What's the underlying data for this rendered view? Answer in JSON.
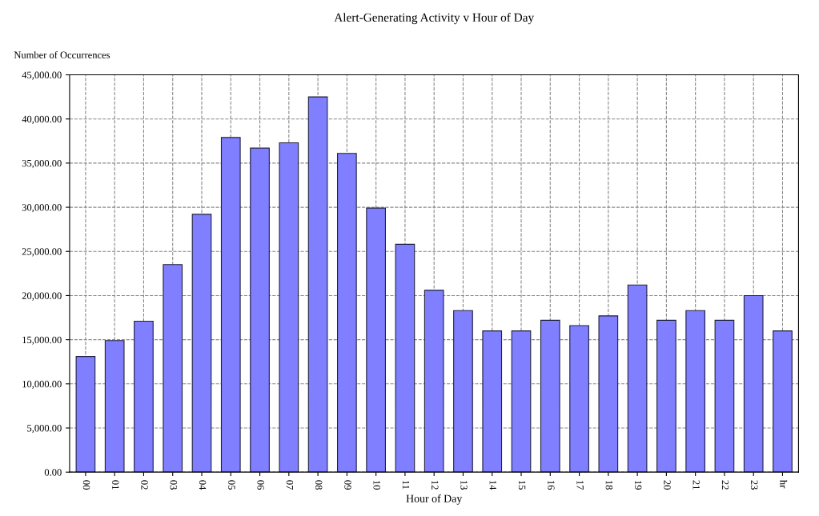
{
  "chart_data": {
    "type": "bar",
    "title": "Alert-Generating Activity v Hour of Day",
    "xlabel": "Hour of Day",
    "ylabel": "Number of Occurrences",
    "categories": [
      "00",
      "01",
      "02",
      "03",
      "04",
      "05",
      "06",
      "07",
      "08",
      "09",
      "10",
      "11",
      "12",
      "13",
      "14",
      "15",
      "16",
      "17",
      "18",
      "19",
      "20",
      "21",
      "22",
      "23",
      "hr"
    ],
    "values": [
      13100,
      14900,
      17100,
      23500,
      29200,
      37900,
      36700,
      37300,
      42500,
      36100,
      29900,
      25800,
      20600,
      18300,
      16000,
      16000,
      17200,
      16600,
      17700,
      21200,
      17200,
      18300,
      17200,
      20000,
      16000
    ],
    "color": "#7f7fff",
    "ylim": [
      0,
      45000
    ],
    "yticks": [
      {
        "value": 0,
        "label": "0.00"
      },
      {
        "value": 5000,
        "label": "5,000.00"
      },
      {
        "value": 10000,
        "label": "10,000.00"
      },
      {
        "value": 15000,
        "label": "15,000.00"
      },
      {
        "value": 20000,
        "label": "20,000.00"
      },
      {
        "value": 25000,
        "label": "25,000.00"
      },
      {
        "value": 30000,
        "label": "30,000.00"
      },
      {
        "value": 35000,
        "label": "35,000.00"
      },
      {
        "value": 40000,
        "label": "40,000.00"
      },
      {
        "value": 45000,
        "label": "45,000.00"
      }
    ],
    "grid": true,
    "legend": false
  }
}
